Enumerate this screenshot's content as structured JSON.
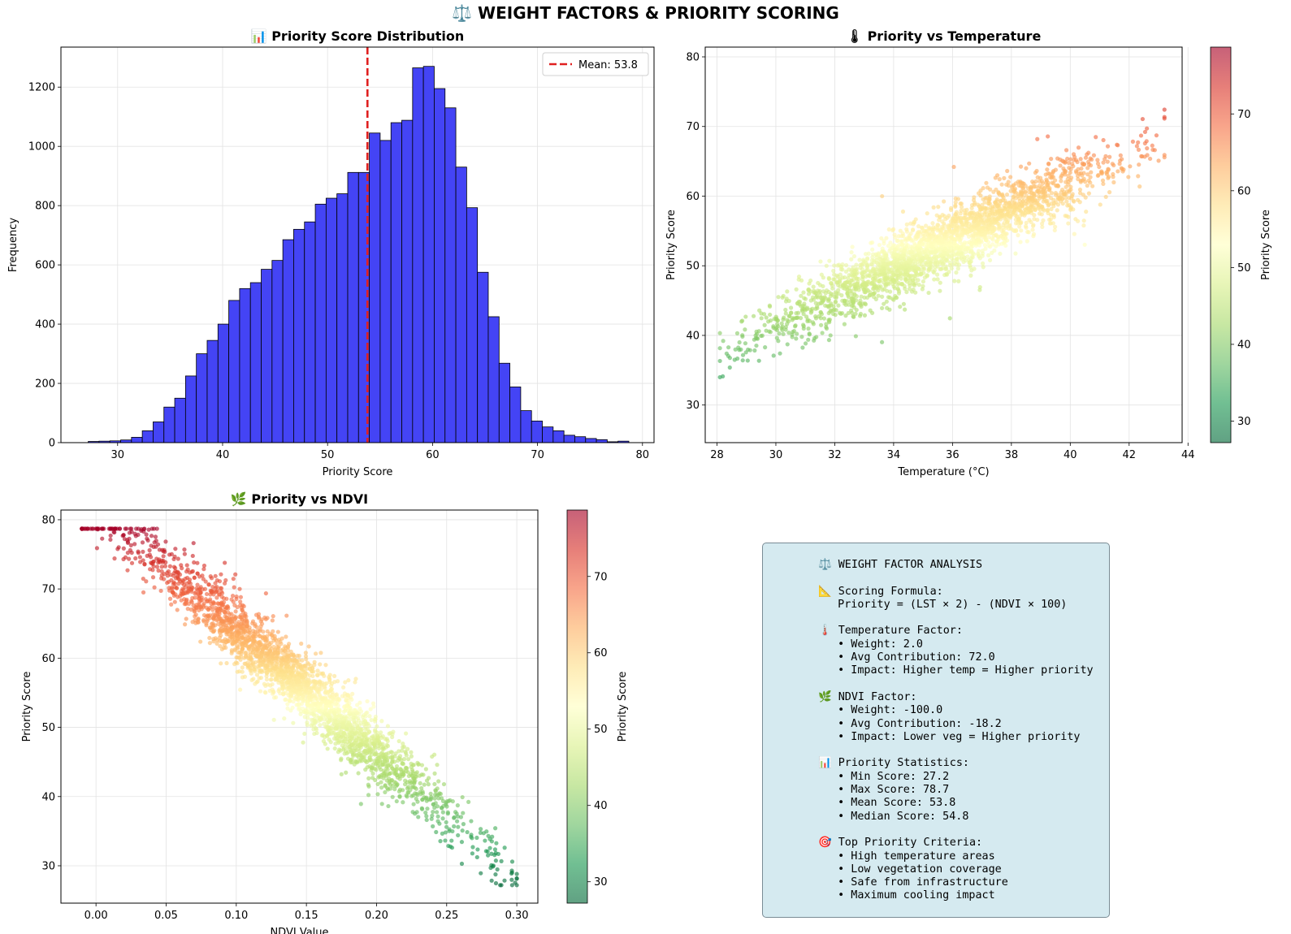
{
  "suptitle": "⚖️ WEIGHT FACTORS & PRIORITY SCORING",
  "colors": {
    "histogram_fill": "#4444f5",
    "histogram_edge": "#000000",
    "mean_line": "#e02020",
    "colormap": "RdYlGn_r",
    "stats_box_bg": "#d5eaf0",
    "stats_box_border": "#7a8c95"
  },
  "chart_data": [
    {
      "type": "bar",
      "title": "📊 Priority Score Distribution",
      "xlabel": "Priority Score",
      "ylabel": "Frequency",
      "xlim": [
        24.6,
        81.1
      ],
      "ylim": [
        0,
        1335
      ],
      "xticks": [
        30,
        40,
        50,
        60,
        70,
        80
      ],
      "yticks": [
        0,
        200,
        400,
        600,
        800,
        1000,
        1200
      ],
      "grid": true,
      "bin_start": 27.2,
      "bin_width": 1.03,
      "values": [
        4,
        5,
        6,
        9,
        18,
        40,
        70,
        120,
        150,
        225,
        300,
        345,
        400,
        480,
        520,
        540,
        585,
        615,
        685,
        720,
        745,
        805,
        825,
        840,
        912,
        912,
        1045,
        1020,
        1080,
        1088,
        1265,
        1270,
        1195,
        1130,
        930,
        793,
        575,
        425,
        268,
        188,
        108,
        73,
        53,
        40,
        25,
        20,
        14,
        10,
        3,
        5
      ],
      "mean_line": {
        "value": 53.8,
        "label": "Mean: 53.8"
      },
      "legend": "top-right"
    },
    {
      "type": "scatter",
      "title": "🌡 Priority vs Temperature",
      "xlabel": "Temperature (°C)",
      "ylabel": "Priority Score",
      "xlim": [
        27.6,
        43.8
      ],
      "ylim": [
        24.6,
        81.4
      ],
      "xticks": [
        28,
        30,
        32,
        34,
        36,
        38,
        40,
        42,
        44
      ],
      "yticks": [
        30,
        40,
        50,
        60,
        70,
        80
      ],
      "grid": true,
      "trend": {
        "slope": 2.0,
        "intercept": -18.2,
        "x_range": [
          28.1,
          43.2
        ],
        "noise": 2.2
      },
      "point_count": 2600,
      "colorbar": {
        "label": "Priority Score",
        "range": [
          27.2,
          78.7
        ],
        "ticks": [
          30,
          40,
          50,
          60,
          70
        ],
        "colormap": "RdYlGn_r"
      }
    },
    {
      "type": "scatter",
      "title": "🌿 Priority vs NDVI",
      "xlabel": "NDVI Value",
      "ylabel": "Priority Score",
      "xlim": [
        -0.025,
        0.315
      ],
      "ylim": [
        24.6,
        81.4
      ],
      "xticks": [
        0.0,
        0.05,
        0.1,
        0.15,
        0.2,
        0.25,
        0.3
      ],
      "xtick_labels": [
        "0.00",
        "0.05",
        "0.10",
        "0.15",
        "0.20",
        "0.25",
        "0.30"
      ],
      "yticks": [
        30,
        40,
        50,
        60,
        70,
        80
      ],
      "grid": true,
      "trend": {
        "slope": -175,
        "intercept": 81.5,
        "x_range": [
          -0.01,
          0.3
        ],
        "noise": 2.4
      },
      "point_count": 2600,
      "colorbar": {
        "label": "Priority Score",
        "range": [
          27.2,
          78.7
        ],
        "ticks": [
          30,
          40,
          50,
          60,
          70
        ],
        "colormap": "RdYlGn_r"
      }
    }
  ],
  "stats_panel": {
    "lines": [
      "⚖️ WEIGHT FACTOR ANALYSIS",
      "",
      "📐 Scoring Formula:",
      "   Priority = (LST × 2) - (NDVI × 100)",
      "",
      "🌡️ Temperature Factor:",
      "   • Weight: 2.0",
      "   • Avg Contribution: 72.0",
      "   • Impact: Higher temp = Higher priority",
      "",
      "🌿 NDVI Factor:",
      "   • Weight: -100.0",
      "   • Avg Contribution: -18.2",
      "   • Impact: Lower veg = Higher priority",
      "",
      "📊 Priority Statistics:",
      "   • Min Score: 27.2",
      "   • Max Score: 78.7",
      "   • Mean Score: 53.8",
      "   • Median Score: 54.8",
      "",
      "🎯 Top Priority Criteria:",
      "   • High temperature areas",
      "   • Low vegetation coverage",
      "   • Safe from infrastructure",
      "   • Maximum cooling impact"
    ]
  }
}
